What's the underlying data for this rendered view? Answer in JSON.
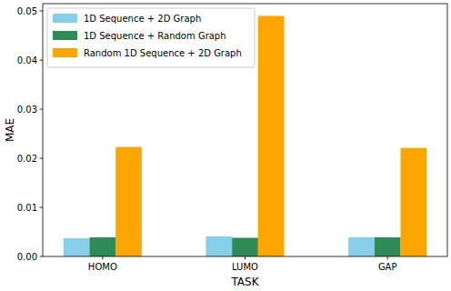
{
  "chart_data": {
    "type": "bar",
    "x_label": "TASK",
    "y_label": "MAE",
    "categories": [
      "HOMO",
      "LUMO",
      "GAP"
    ],
    "series": [
      {
        "name": "1D Sequence + 2D Graph",
        "color": "#87ceeb",
        "values": [
          0.0037,
          0.0041,
          0.0039
        ]
      },
      {
        "name": "1D Sequence + Random Graph",
        "color": "#2e8b57",
        "values": [
          0.0039,
          0.0038,
          0.0039
        ]
      },
      {
        "name": "Random 1D Sequence + 2D Graph",
        "color": "#ffa500",
        "values": [
          0.0223,
          0.049,
          0.0221
        ]
      }
    ],
    "ylim": [
      0,
      0.0515
    ],
    "yticks": [
      {
        "value": 0,
        "label": "0.00"
      },
      0.01,
      0.02,
      0.03,
      0.04,
      0.05
    ],
    "grid": false,
    "legend": "upper left"
  }
}
